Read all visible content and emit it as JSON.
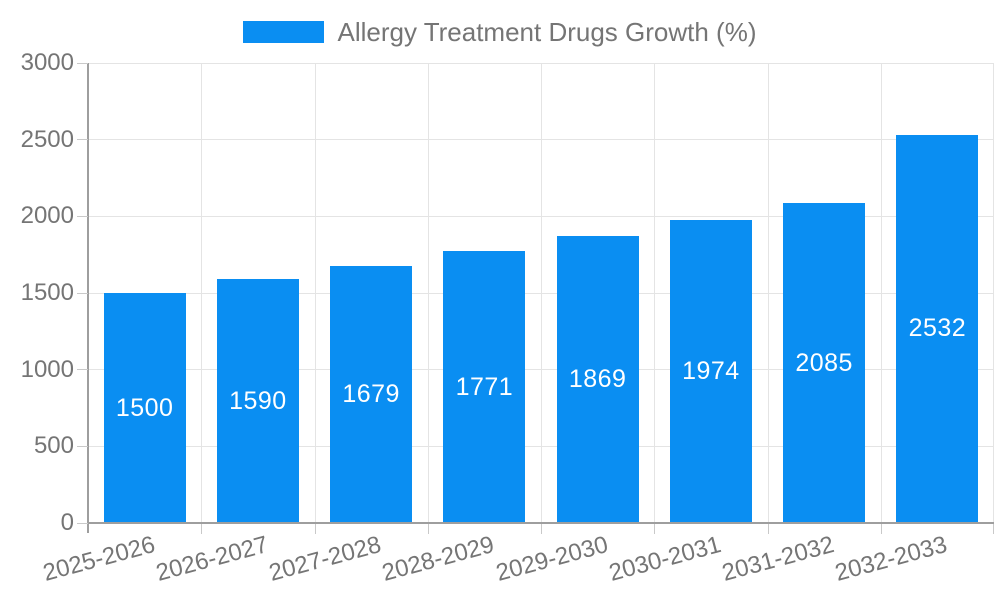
{
  "chart_data": {
    "type": "bar",
    "title": "Allergy Treatment Drugs Growth (%)",
    "legend": {
      "label": "Allergy Treatment Drugs Growth (%)",
      "position": "top"
    },
    "categories": [
      "2025-2026",
      "2026-2027",
      "2027-2028",
      "2028-2029",
      "2029-2030",
      "2030-2031",
      "2031-2032",
      "2032-2033"
    ],
    "values": [
      1500,
      1590,
      1679,
      1771,
      1869,
      1974,
      2085,
      2532
    ],
    "xlabel": "",
    "ylabel": "",
    "ylim": [
      0,
      3000
    ],
    "yticks": [
      0,
      500,
      1000,
      1500,
      2000,
      2500,
      3000
    ],
    "grid": true,
    "bar_color": "#0a8ef2",
    "value_label_color": "#ffffff"
  },
  "colors": {
    "background": "#ffffff",
    "axis_line": "#9e9e9e",
    "gridline": "#e4e4e4",
    "tick_mark": "#c9c9c9",
    "tick_text": "#757575",
    "legend_text": "#757575"
  }
}
